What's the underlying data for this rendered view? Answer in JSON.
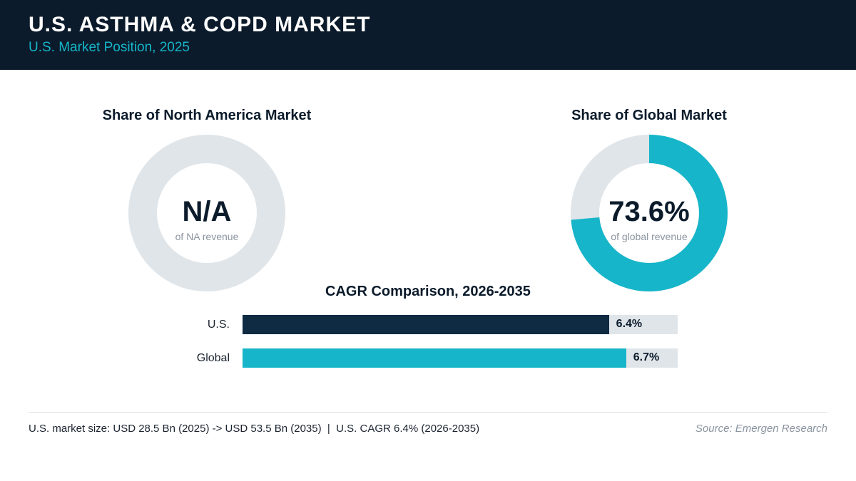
{
  "header": {
    "title": "U.S. ASTHMA & COPD MARKET",
    "subtitle": "U.S. Market Position, 2025"
  },
  "colors": {
    "header_bg": "#0b1b2b",
    "accent": "#16b5c9",
    "us_bar": "#0f2a43",
    "track": "#e0e5e9"
  },
  "chart_data": [
    {
      "type": "pie",
      "title": "Share of North America Market",
      "center_value": "N/A",
      "center_label": "of NA revenue",
      "value": null
    },
    {
      "type": "pie",
      "title": "Share of Global Market",
      "center_value": "73.6%",
      "center_label": "of global revenue",
      "value": 73.6
    },
    {
      "type": "bar",
      "title": "CAGR Comparison, 2026-2035",
      "categories": [
        "U.S.",
        "Global"
      ],
      "values": [
        6.4,
        6.7
      ],
      "value_labels": [
        "6.4%",
        "6.7%"
      ],
      "max": 7.6
    }
  ],
  "footer": {
    "note": "U.S. market size: USD 28.5 Bn (2025) -> USD 53.5 Bn (2035)  |  U.S. CAGR 6.4% (2026-2035)",
    "source": "Source: Emergen Research"
  }
}
